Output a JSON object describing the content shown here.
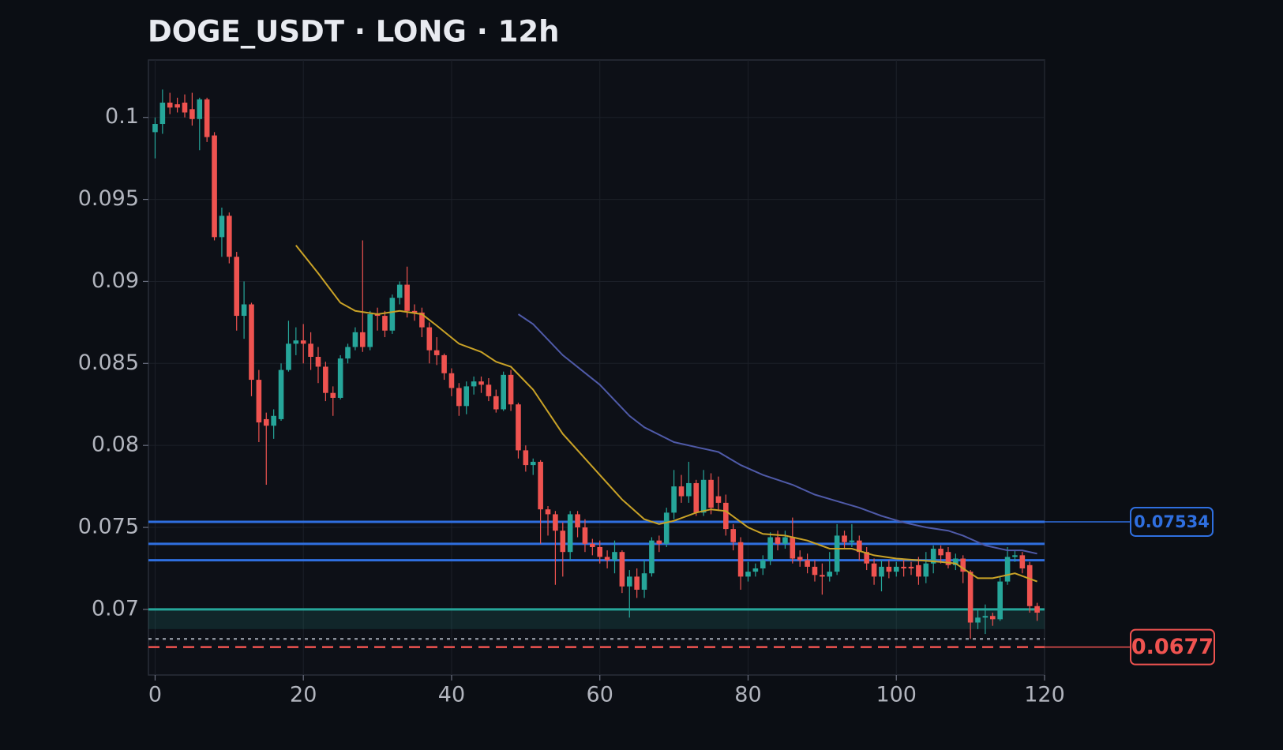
{
  "chart_data": {
    "type": "candlestick",
    "title": "DOGE_USDT · LONG · 12h",
    "up_color": "#26a69a",
    "down_color": "#ef5350",
    "xlim": [
      -0.9,
      120
    ],
    "ylim": [
      0.066,
      0.1035
    ],
    "xticks": [
      0,
      20,
      40,
      60,
      80,
      100,
      120
    ],
    "yticks": [
      0.07,
      0.075,
      0.08,
      0.085,
      0.09,
      0.095,
      0.1
    ],
    "grid": true,
    "x": [
      0,
      1,
      2,
      3,
      4,
      5,
      6,
      7,
      8,
      9,
      10,
      11,
      12,
      13,
      14,
      15,
      16,
      17,
      18,
      19,
      20,
      21,
      22,
      23,
      24,
      25,
      26,
      27,
      28,
      29,
      30,
      31,
      32,
      33,
      34,
      35,
      36,
      37,
      38,
      39,
      40,
      41,
      42,
      43,
      44,
      45,
      46,
      47,
      48,
      49,
      50,
      51,
      52,
      53,
      54,
      55,
      56,
      57,
      58,
      59,
      60,
      61,
      62,
      63,
      64,
      65,
      66,
      67,
      68,
      69,
      70,
      71,
      72,
      73,
      74,
      75,
      76,
      77,
      78,
      79,
      80,
      81,
      82,
      83,
      84,
      85,
      86,
      87,
      88,
      89,
      90,
      91,
      92,
      93,
      94,
      95,
      96,
      97,
      98,
      99,
      100,
      101,
      102,
      103,
      104,
      105,
      106,
      107,
      108,
      109,
      110,
      111,
      112,
      113,
      114,
      115,
      116,
      117,
      118,
      119
    ],
    "open": [
      0.0991,
      0.0996,
      0.1009,
      0.1008,
      0.1009,
      0.1005,
      0.0999,
      0.1011,
      0.0989,
      0.0927,
      0.094,
      0.0915,
      0.0879,
      0.0886,
      0.084,
      0.0816,
      0.0812,
      0.0816,
      0.0846,
      0.0862,
      0.0864,
      0.0862,
      0.0854,
      0.0848,
      0.0832,
      0.0829,
      0.0853,
      0.086,
      0.0869,
      0.086,
      0.088,
      0.0879,
      0.087,
      0.089,
      0.0898,
      0.0882,
      0.0881,
      0.0872,
      0.0858,
      0.0855,
      0.0844,
      0.0835,
      0.0824,
      0.0836,
      0.0839,
      0.0837,
      0.083,
      0.0822,
      0.0843,
      0.0825,
      0.0797,
      0.0788,
      0.079,
      0.0761,
      0.0758,
      0.0748,
      0.0735,
      0.0758,
      0.075,
      0.074,
      0.0738,
      0.0732,
      0.073,
      0.0735,
      0.0714,
      0.072,
      0.0712,
      0.0722,
      0.0742,
      0.074,
      0.0759,
      0.0775,
      0.0769,
      0.0777,
      0.0759,
      0.0779,
      0.0769,
      0.0765,
      0.0749,
      0.0741,
      0.072,
      0.0723,
      0.0725,
      0.073,
      0.0744,
      0.074,
      0.0744,
      0.0732,
      0.073,
      0.0726,
      0.0721,
      0.072,
      0.0723,
      0.0745,
      0.0741,
      0.0742,
      0.0735,
      0.0728,
      0.072,
      0.0726,
      0.0723,
      0.0726,
      0.0726,
      0.0727,
      0.072,
      0.0728,
      0.0737,
      0.0735,
      0.0727,
      0.0731,
      0.0723,
      0.0692,
      0.0695,
      0.0696,
      0.0694,
      0.0717,
      0.0732,
      0.0733,
      0.0727,
      0.0702
    ],
    "high": [
      0.1,
      0.1017,
      0.1015,
      0.1012,
      0.1014,
      0.1015,
      0.1012,
      0.1012,
      0.0991,
      0.0945,
      0.0942,
      0.0918,
      0.09,
      0.0887,
      0.0846,
      0.082,
      0.0822,
      0.085,
      0.0876,
      0.0872,
      0.0874,
      0.0869,
      0.086,
      0.0851,
      0.0836,
      0.0855,
      0.0862,
      0.0872,
      0.0925,
      0.0882,
      0.0884,
      0.0882,
      0.0892,
      0.09,
      0.0909,
      0.0886,
      0.0884,
      0.0875,
      0.0866,
      0.0856,
      0.0847,
      0.0838,
      0.0839,
      0.0842,
      0.0842,
      0.0841,
      0.0834,
      0.0845,
      0.0846,
      0.0826,
      0.08,
      0.0792,
      0.0791,
      0.0763,
      0.076,
      0.0753,
      0.076,
      0.076,
      0.0755,
      0.0743,
      0.0742,
      0.0736,
      0.0742,
      0.0736,
      0.0724,
      0.0725,
      0.073,
      0.0744,
      0.0745,
      0.0762,
      0.0785,
      0.0782,
      0.079,
      0.0779,
      0.0785,
      0.0783,
      0.0781,
      0.077,
      0.0752,
      0.0744,
      0.0729,
      0.0728,
      0.0733,
      0.0747,
      0.0748,
      0.0748,
      0.0756,
      0.0736,
      0.0734,
      0.073,
      0.0728,
      0.0735,
      0.0752,
      0.0748,
      0.0752,
      0.0745,
      0.0738,
      0.0731,
      0.073,
      0.073,
      0.0729,
      0.073,
      0.0729,
      0.0732,
      0.0735,
      0.0739,
      0.0739,
      0.0738,
      0.0734,
      0.0733,
      0.0724,
      0.07,
      0.0703,
      0.0698,
      0.072,
      0.0738,
      0.0736,
      0.0735,
      0.0729,
      0.0704
    ],
    "low": [
      0.0975,
      0.099,
      0.1002,
      0.1003,
      0.1,
      0.0995,
      0.098,
      0.0985,
      0.0925,
      0.0915,
      0.0911,
      0.087,
      0.0865,
      0.083,
      0.0802,
      0.0776,
      0.0804,
      0.0815,
      0.0845,
      0.0855,
      0.085,
      0.0846,
      0.0838,
      0.0827,
      0.0818,
      0.0828,
      0.085,
      0.0858,
      0.0857,
      0.0858,
      0.087,
      0.0866,
      0.0868,
      0.0886,
      0.0878,
      0.0876,
      0.0866,
      0.085,
      0.0849,
      0.084,
      0.083,
      0.0818,
      0.0819,
      0.0831,
      0.0832,
      0.0827,
      0.082,
      0.0821,
      0.0821,
      0.0792,
      0.0784,
      0.0782,
      0.074,
      0.0745,
      0.0715,
      0.072,
      0.073,
      0.0744,
      0.0735,
      0.0733,
      0.0728,
      0.0725,
      0.0722,
      0.071,
      0.0695,
      0.0707,
      0.0707,
      0.072,
      0.0735,
      0.0738,
      0.0755,
      0.0765,
      0.0765,
      0.0757,
      0.0757,
      0.0758,
      0.076,
      0.0745,
      0.0736,
      0.0712,
      0.0717,
      0.072,
      0.0721,
      0.0727,
      0.0736,
      0.0737,
      0.0728,
      0.0726,
      0.0722,
      0.0717,
      0.0709,
      0.0717,
      0.0721,
      0.0737,
      0.0738,
      0.073,
      0.0724,
      0.0715,
      0.0711,
      0.0719,
      0.072,
      0.072,
      0.0721,
      0.0715,
      0.0716,
      0.0722,
      0.0728,
      0.0725,
      0.0724,
      0.0716,
      0.0682,
      0.0688,
      0.0685,
      0.069,
      0.0693,
      0.0715,
      0.0729,
      0.0722,
      0.0698,
      0.0693
    ],
    "close": [
      0.0996,
      0.1009,
      0.1006,
      0.1006,
      0.1003,
      0.0999,
      0.1011,
      0.0988,
      0.0927,
      0.094,
      0.0915,
      0.0879,
      0.0886,
      0.084,
      0.0814,
      0.0812,
      0.0818,
      0.0846,
      0.0862,
      0.0864,
      0.0862,
      0.0854,
      0.0848,
      0.0832,
      0.0829,
      0.0853,
      0.086,
      0.0869,
      0.086,
      0.088,
      0.0879,
      0.087,
      0.089,
      0.0898,
      0.0882,
      0.0881,
      0.0872,
      0.0858,
      0.0855,
      0.0844,
      0.0835,
      0.0824,
      0.0836,
      0.0839,
      0.0837,
      0.083,
      0.0822,
      0.0843,
      0.0825,
      0.0797,
      0.0788,
      0.079,
      0.0761,
      0.0758,
      0.0748,
      0.0735,
      0.0758,
      0.075,
      0.074,
      0.0738,
      0.0732,
      0.073,
      0.0735,
      0.0714,
      0.072,
      0.0712,
      0.0722,
      0.0742,
      0.074,
      0.0759,
      0.0775,
      0.0769,
      0.0777,
      0.0759,
      0.0779,
      0.0762,
      0.0765,
      0.0749,
      0.0741,
      0.072,
      0.0723,
      0.0725,
      0.073,
      0.0744,
      0.074,
      0.0744,
      0.0731,
      0.073,
      0.0726,
      0.0721,
      0.072,
      0.0723,
      0.0745,
      0.0741,
      0.0742,
      0.0735,
      0.0728,
      0.072,
      0.0726,
      0.0723,
      0.0726,
      0.0725,
      0.0725,
      0.072,
      0.0728,
      0.0737,
      0.0733,
      0.0727,
      0.0731,
      0.0723,
      0.0692,
      0.0695,
      0.0696,
      0.0694,
      0.0717,
      0.0732,
      0.0733,
      0.0725,
      0.0702,
      0.0698
    ],
    "lines": [
      {
        "color": "#c9a227",
        "x": [
          19,
          22,
          25,
          27,
          30,
          33,
          36,
          38,
          41,
          44,
          46,
          48,
          51,
          55,
          60,
          63,
          66,
          68,
          70,
          73,
          75,
          77,
          80,
          82,
          85,
          88,
          91,
          94,
          97,
          100,
          103,
          106,
          108,
          111,
          113,
          116,
          119
        ],
        "values": [
          0.0922,
          0.0905,
          0.0887,
          0.0882,
          0.088,
          0.0882,
          0.088,
          0.0873,
          0.0862,
          0.0857,
          0.0851,
          0.0848,
          0.0834,
          0.0807,
          0.0782,
          0.0767,
          0.0755,
          0.0752,
          0.0754,
          0.0759,
          0.0761,
          0.076,
          0.075,
          0.0746,
          0.0745,
          0.0742,
          0.0737,
          0.0737,
          0.0733,
          0.0731,
          0.073,
          0.0729,
          0.0728,
          0.0719,
          0.0719,
          0.0722,
          0.0717
        ]
      },
      {
        "color": "#4f5aa8",
        "x": [
          49,
          51,
          55,
          60,
          64,
          66,
          70,
          73,
          76,
          79,
          82,
          86,
          89,
          92,
          95,
          98,
          101,
          104,
          107,
          109,
          112,
          115,
          117,
          119
        ],
        "values": [
          0.088,
          0.0874,
          0.0855,
          0.0837,
          0.0818,
          0.0811,
          0.0802,
          0.0799,
          0.0796,
          0.0788,
          0.0782,
          0.0776,
          0.077,
          0.0766,
          0.0762,
          0.0757,
          0.0753,
          0.075,
          0.0748,
          0.0745,
          0.0739,
          0.0736,
          0.0736,
          0.0734
        ]
      }
    ],
    "zone": {
      "from": 0.0688,
      "to": 0.07,
      "color": "#26a69a"
    },
    "levels": [
      {
        "value": 0.07534,
        "color": "#2f6fe0",
        "style": "solid",
        "tag": true
      },
      {
        "value": 0.074,
        "color": "#2f6fe0",
        "style": "solid",
        "tag": false
      },
      {
        "value": 0.073,
        "color": "#2f6fe0",
        "style": "solid",
        "tag": false
      },
      {
        "value": 0.07,
        "color": "#26a69a",
        "style": "solid",
        "tag": false
      },
      {
        "value": 0.0682,
        "color": "#8a8f99",
        "style": "dotted",
        "tag": false
      },
      {
        "value": 0.0677,
        "color": "#ef5350",
        "style": "dashed",
        "tag": true
      }
    ]
  }
}
